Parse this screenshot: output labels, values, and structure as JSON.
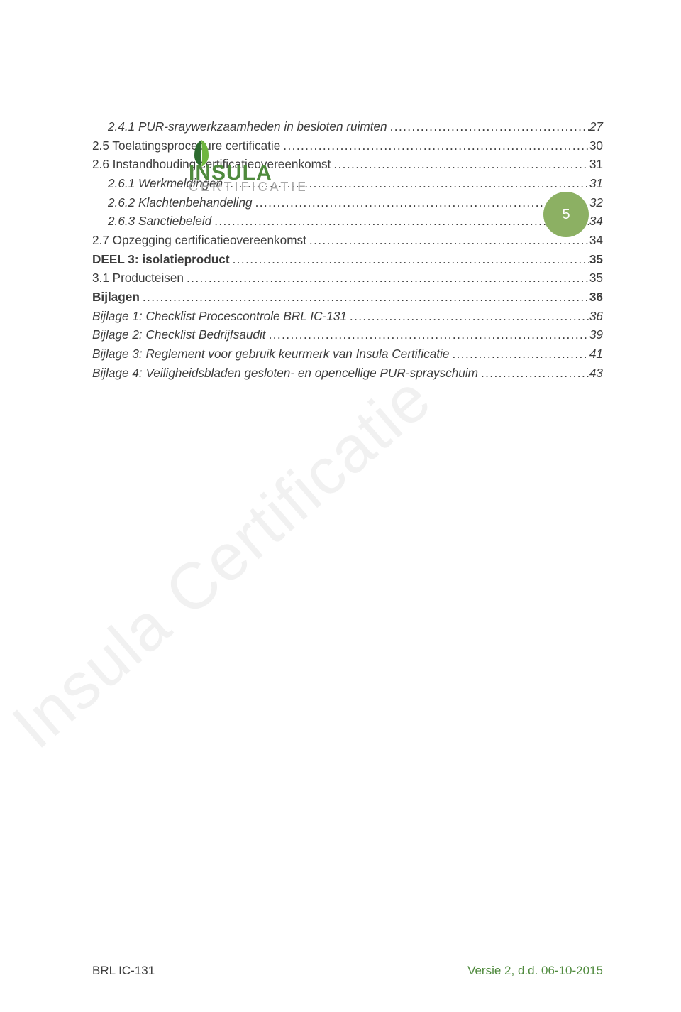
{
  "colors": {
    "badge_bg": "#8cb063",
    "text": "#3c3c3c",
    "footer_accent": "#4f8a3d",
    "logo_green_dark": "#2d6b2f",
    "logo_green_light": "#6fb63f",
    "logo_text_main": "#4f8a3d",
    "logo_text_sub": "#a8a8a8",
    "watermark": "#f1f1f1"
  },
  "logo": {
    "main": "INSULA",
    "sub": "CERTIFICATIE"
  },
  "page_number": "5",
  "watermark_text": "Insula Certificatie",
  "toc": [
    {
      "indent": 1,
      "label": "2.4.1 PUR-sraywerkzaamheden in besloten ruimten",
      "page": "27",
      "italic": true
    },
    {
      "indent": 0,
      "label": "2.5   Toelatingsprocedure certificatie",
      "page": "30"
    },
    {
      "indent": 0,
      "label": "2.6   Instandhouding certificatieovereenkomst",
      "page": "31"
    },
    {
      "indent": 1,
      "label": "2.6.1 Werkmeldingen",
      "page": "31",
      "italic": true
    },
    {
      "indent": 1,
      "label": "2.6.2 Klachtenbehandeling",
      "page": "32",
      "italic": true
    },
    {
      "indent": 1,
      "label": "2.6.3 Sanctiebeleid",
      "page": "34",
      "italic": true
    },
    {
      "indent": 0,
      "label": "2.7   Opzegging certificatieovereenkomst",
      "page": "34"
    },
    {
      "indent": 0,
      "label": "DEEL 3: isolatieproduct",
      "page": "35",
      "bold": true
    },
    {
      "indent": 0,
      "label": "3.1   Producteisen",
      "page": "35"
    },
    {
      "indent": 0,
      "label": "Bijlagen",
      "page": "36",
      "bold": true
    },
    {
      "indent": 0,
      "label": "Bijlage 1: Checklist Procescontrole BRL IC-131",
      "page": "36",
      "italic": true
    },
    {
      "indent": 0,
      "label": "Bijlage 2: Checklist Bedrijfsaudit",
      "page": "39",
      "italic": true
    },
    {
      "indent": 0,
      "label": "Bijlage 3: Reglement voor gebruik keurmerk van Insula Certificatie",
      "page": "41",
      "italic": true
    },
    {
      "indent": 0,
      "label": "Bijlage 4: Veiligheidsbladen gesloten- en opencellige PUR-sprayschuim",
      "page": "43",
      "italic": true
    }
  ],
  "footer": {
    "left": "BRL IC-131",
    "right": "Versie 2, d.d. 06-10-2015"
  }
}
